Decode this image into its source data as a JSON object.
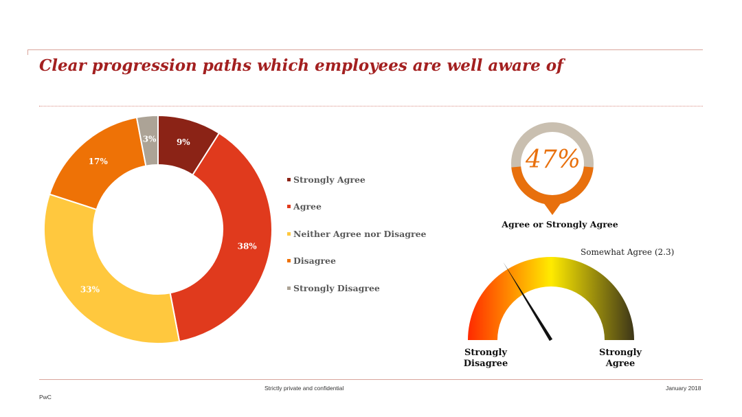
{
  "slide": {
    "title": "Clear progression paths which employees are well aware of"
  },
  "chart_data": [
    {
      "type": "pie",
      "categories": [
        "Strongly Agree",
        "Agree",
        "Neither Agree nor Disagree",
        "Disagree",
        "Strongly Disagree"
      ],
      "values": [
        9,
        38,
        33,
        17,
        3
      ],
      "value_labels": [
        "9%",
        "38%",
        "33%",
        "17%",
        "3%"
      ],
      "colors": [
        "#8b2316",
        "#e03a1d",
        "#ffc83e",
        "#ee7206",
        "#aca396"
      ],
      "label_colors": [
        "#ffffff",
        "#ffffff",
        "#ffffff",
        "#ffffff",
        "#ffffff"
      ],
      "legend_position": "right"
    },
    {
      "type": "kpi",
      "value": 47,
      "value_label": "47%",
      "label": "Agree or Strongly Agree",
      "colors": {
        "fill": "#e8700d",
        "track": "#c9bfb0"
      }
    },
    {
      "type": "gauge",
      "range": [
        1,
        5
      ],
      "value": 2.3,
      "value_label": "Somewhat Agree (2.3)",
      "min_label": "Strongly Disagree",
      "max_label": "Strongly Agree",
      "colors": {
        "low": "#ff2a00",
        "mid": "#ffeb00",
        "high": "#3d3618"
      }
    }
  ],
  "footer": {
    "left": "PwC",
    "center": "Strictly private and confidential",
    "right": "January 2018"
  }
}
